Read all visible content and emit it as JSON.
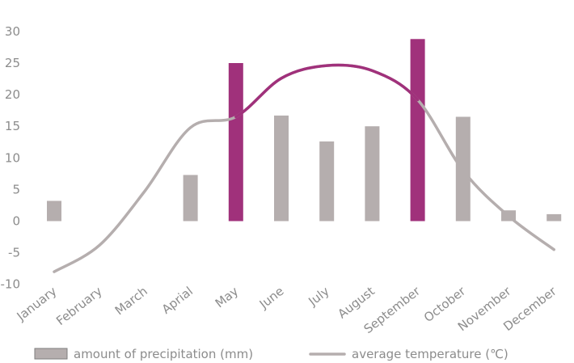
{
  "chart_data": {
    "type": "bar",
    "categories": [
      "January",
      "February",
      "March",
      "Aprial",
      "May",
      "June",
      "July",
      "August",
      "September",
      "October",
      "November",
      "December"
    ],
    "ylim": [
      -10,
      30
    ],
    "yticks": [
      -10,
      -5,
      0,
      5,
      10,
      15,
      20,
      25,
      30
    ],
    "grid": false,
    "legend_position": "bottom",
    "series": [
      {
        "name": "amount of precipitation (mm)",
        "type": "bar",
        "values": [
          3.2,
          0,
          0,
          7.3,
          25.0,
          16.7,
          12.6,
          15.0,
          28.8,
          16.5,
          1.7,
          1.1
        ],
        "color": "#b5aeae",
        "highlight_color": "#a0317b",
        "highlight_categories": [
          "May",
          "September"
        ]
      },
      {
        "name": "average temperature (℃)",
        "type": "line",
        "values": [
          -8.0,
          -3.8,
          4.8,
          14.8,
          16.5,
          22.6,
          24.6,
          23.8,
          19.2,
          8.0,
          0.8,
          -4.5
        ],
        "color": "#b5aeae",
        "highlight_color": "#a0317b",
        "highlight_range": [
          "May",
          "September"
        ]
      }
    ]
  }
}
